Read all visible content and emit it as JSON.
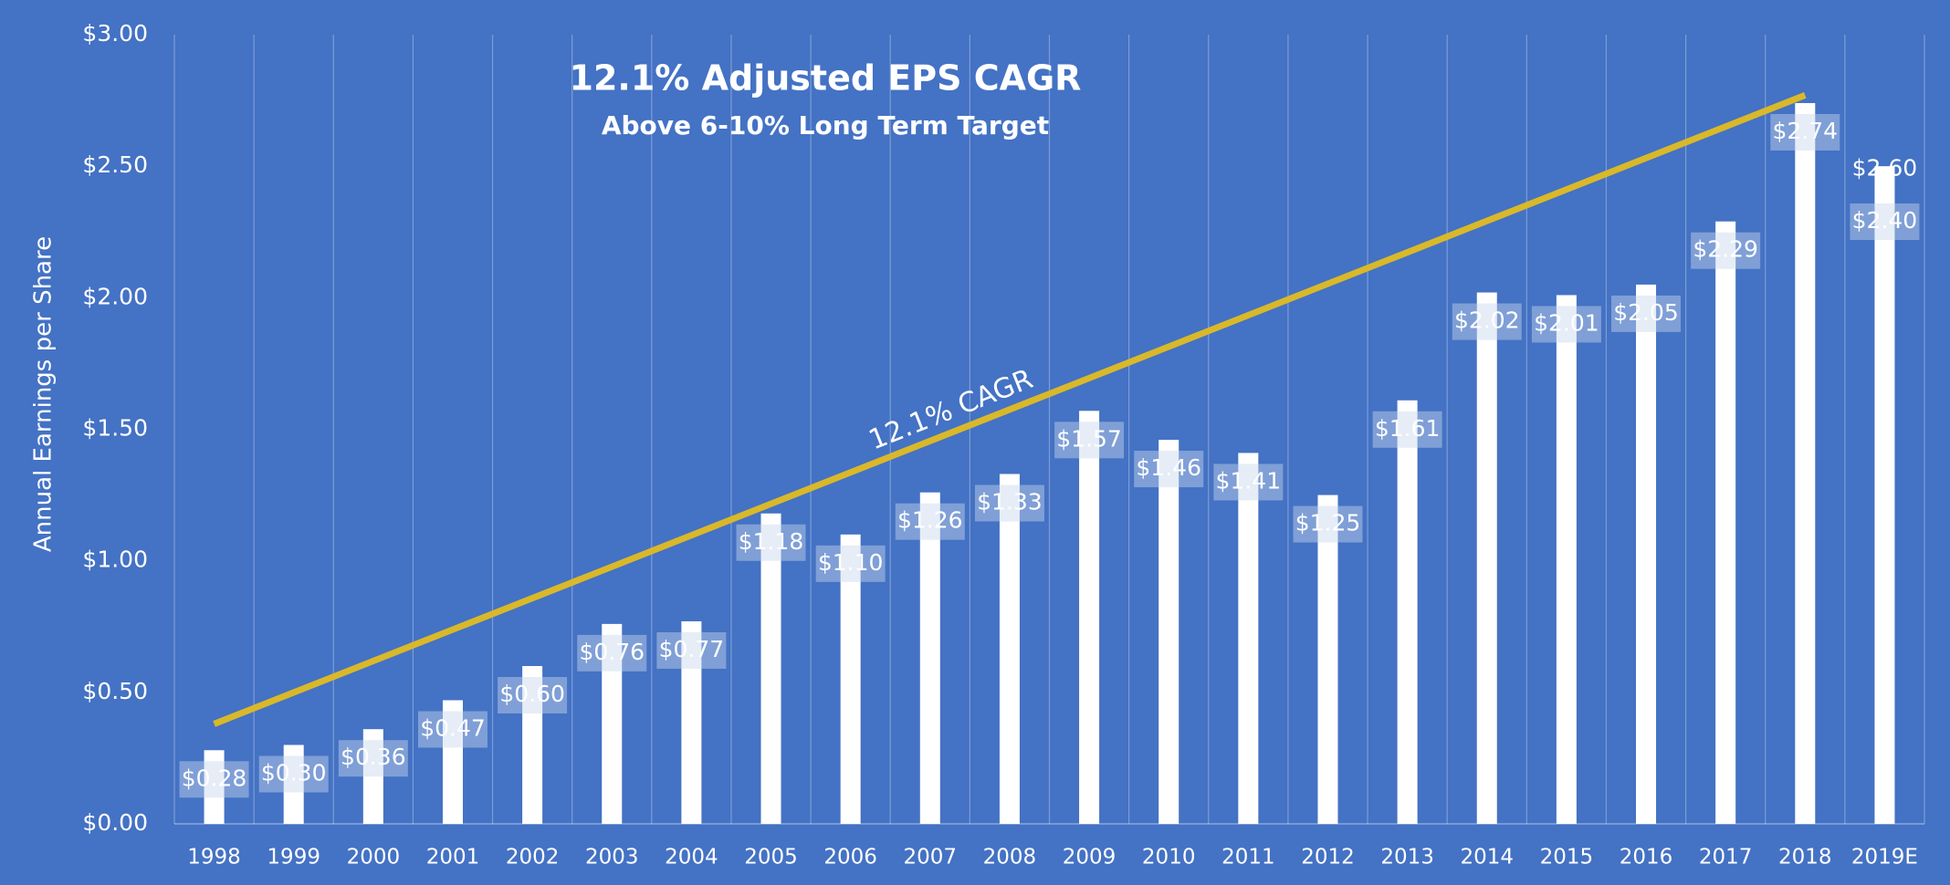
{
  "chart_data": {
    "type": "bar",
    "title": "12.1% Adjusted EPS CAGR",
    "subtitle": "Above 6-10% Long Term Target",
    "ylabel": "Annual Earnings per Share",
    "categories": [
      "1998",
      "1999",
      "2000",
      "2001",
      "2002",
      "2003",
      "2004",
      "2005",
      "2006",
      "2007",
      "2008",
      "2009",
      "2010",
      "2011",
      "2012",
      "2013",
      "2014",
      "2015",
      "2016",
      "2017",
      "2018",
      "2019E"
    ],
    "values": [
      0.28,
      0.3,
      0.36,
      0.47,
      0.6,
      0.76,
      0.77,
      1.18,
      1.1,
      1.26,
      1.33,
      1.57,
      1.46,
      1.41,
      1.25,
      1.61,
      2.02,
      2.01,
      2.05,
      2.29,
      2.74,
      2.5
    ],
    "value_labels": [
      "$0.28",
      "$0.30",
      "$0.36",
      "$0.47",
      "$0.60",
      "$0.76",
      "$0.77",
      "$1.18",
      "$1.10",
      "$1.26",
      "$1.33",
      "$1.57",
      "$1.46",
      "$1.41",
      "$1.25",
      "$1.61",
      "$2.02",
      "$2.01",
      "$2.05",
      "$2.29",
      "$2.74",
      null
    ],
    "guidance": {
      "low": 2.4,
      "high": 2.6,
      "low_label": "$2.40",
      "high_label": "$2.60"
    },
    "color": "#ffffff",
    "background": "#4472c4",
    "trend": {
      "label": "12.1% CAGR",
      "start": 0.38,
      "end": 2.77,
      "color": "#d9b82a"
    },
    "ylim": [
      0,
      3
    ],
    "yticks": [
      {
        "value": 0,
        "label": "$0.00"
      },
      {
        "value": 0.5,
        "label": "$0.50"
      },
      {
        "value": 1,
        "label": "$1.00"
      },
      {
        "value": 1.5,
        "label": "$1.50"
      },
      {
        "value": 2,
        "label": "$2.00"
      },
      {
        "value": 2.5,
        "label": "$2.50"
      },
      {
        "value": 3,
        "label": "$3.00"
      }
    ],
    "grid": true
  }
}
